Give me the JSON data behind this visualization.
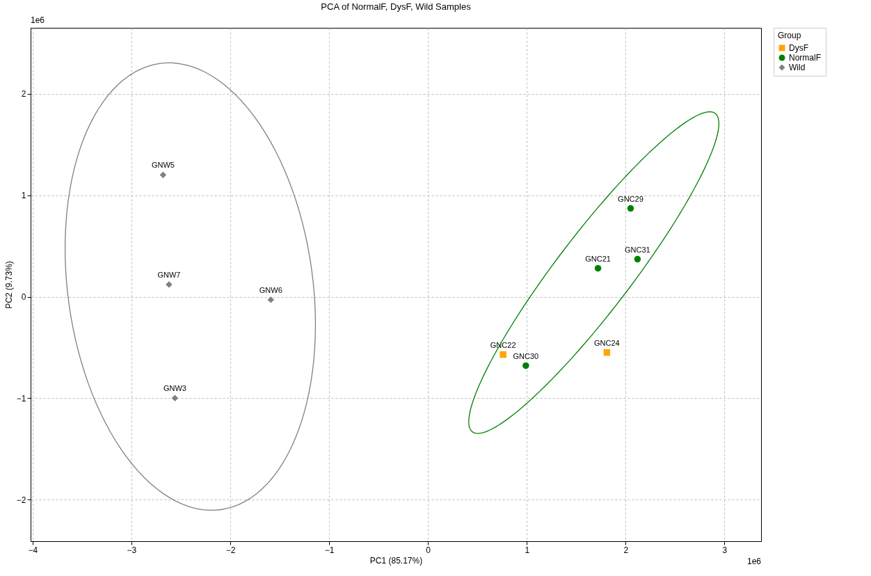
{
  "chart_data": {
    "type": "scatter",
    "title": "PCA of NormalF, DysF, Wild Samples",
    "xlabel": "PC1 (85.17%)",
    "ylabel": "PC2 (9.73%)",
    "legend_title": "Group",
    "legend": "right",
    "grid": true,
    "xlim": [
      -4.02,
      3.37
    ],
    "ylim": [
      -2.41,
      2.65
    ],
    "xticks": [
      -4,
      -3,
      -2,
      -1,
      0,
      1,
      2,
      3
    ],
    "yticks": [
      -2,
      -1,
      0,
      1,
      2
    ],
    "annotations": [
      "1e6",
      "1e6"
    ],
    "series": [
      {
        "name": "DysF",
        "color": "#ffa500",
        "marker": "square",
        "x": [
          0.76,
          1.81
        ],
        "values": [
          -0.57,
          -0.55
        ],
        "value_labels": [
          "GNC22",
          "GNC24"
        ]
      },
      {
        "name": "NormalF",
        "color": "#008000",
        "marker": "circle",
        "x": [
          2.05,
          2.12,
          1.72,
          0.99
        ],
        "values": [
          0.87,
          0.37,
          0.28,
          -0.68
        ],
        "value_labels": [
          "GNC29",
          "GNC31",
          "GNC21",
          "GNC30"
        ]
      },
      {
        "name": "Wild",
        "color": "#808080",
        "marker": "diamond",
        "x": [
          -2.68,
          -2.62,
          -1.59,
          -2.56
        ],
        "values": [
          1.2,
          0.12,
          -0.03,
          -1.0
        ],
        "value_labels": [
          "GNW5",
          "GNW7",
          "GNW6",
          "GNW3"
        ]
      }
    ]
  }
}
